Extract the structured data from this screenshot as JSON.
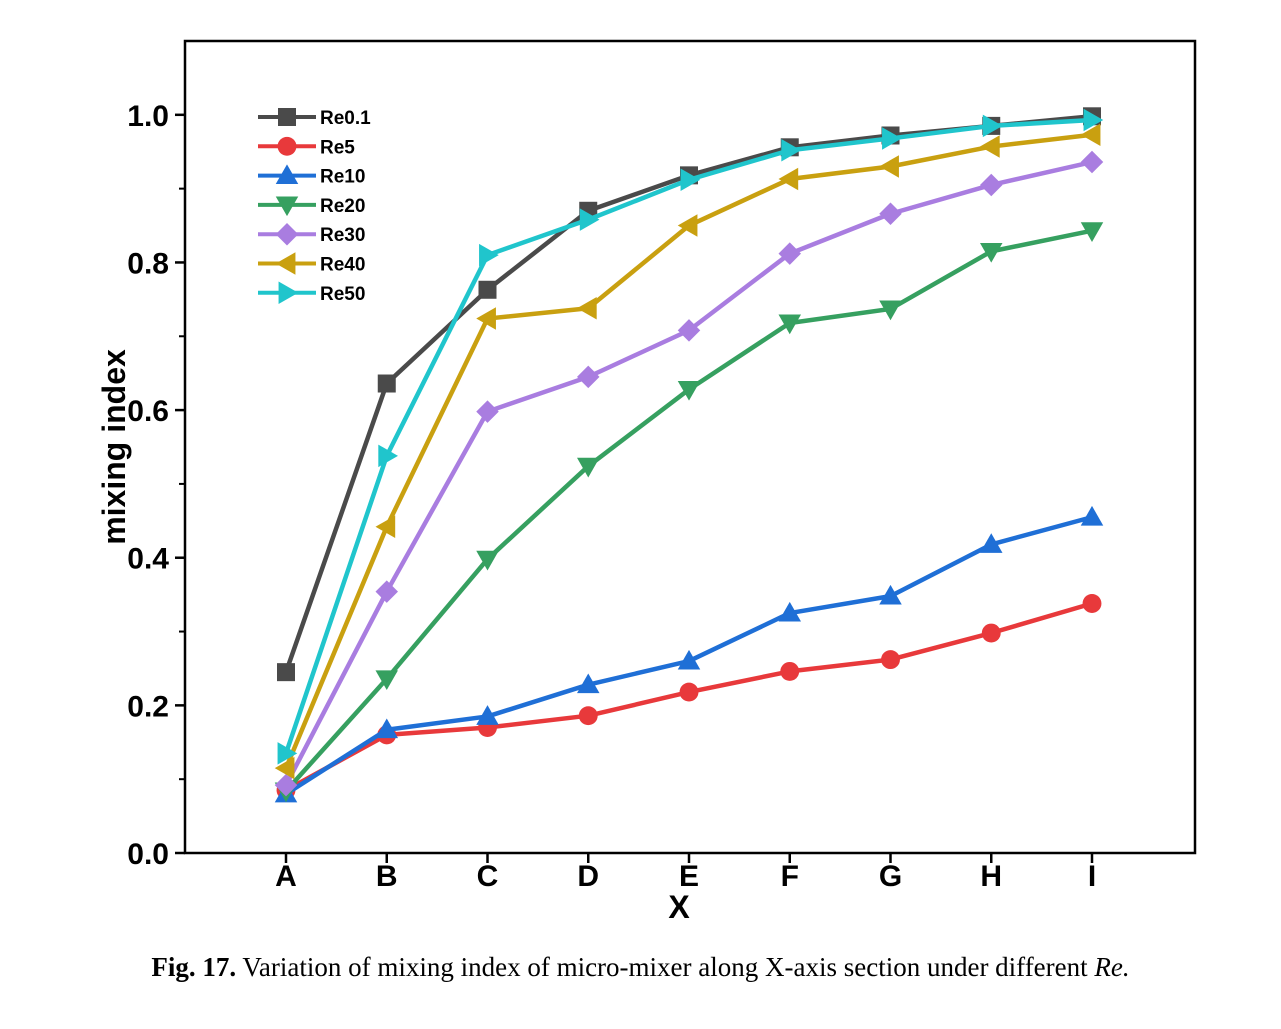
{
  "chart_data": {
    "type": "line",
    "categories": [
      "A",
      "B",
      "C",
      "D",
      "E",
      "F",
      "G",
      "H",
      "I"
    ],
    "xlabel": "X",
    "ylabel": "mixing index",
    "ylim": [
      0.0,
      1.1
    ],
    "yticks": [
      "0.0",
      "0.2",
      "0.4",
      "0.6",
      "0.8",
      "1.0"
    ],
    "grid": false,
    "legend_position": "top-left",
    "series": [
      {
        "name": "Re0.1",
        "color": "#4a4a4a",
        "marker": "square",
        "values": [
          0.245,
          0.636,
          0.763,
          0.87,
          0.918,
          0.956,
          0.972,
          0.985,
          0.998
        ]
      },
      {
        "name": "Re5",
        "color": "#e8393b",
        "marker": "circle",
        "values": [
          0.085,
          0.16,
          0.17,
          0.186,
          0.218,
          0.246,
          0.262,
          0.298,
          0.338
        ]
      },
      {
        "name": "Re10",
        "color": "#1f6fd6",
        "marker": "triangle-up",
        "values": [
          0.08,
          0.167,
          0.185,
          0.228,
          0.26,
          0.325,
          0.348,
          0.418,
          0.455
        ]
      },
      {
        "name": "Re20",
        "color": "#36a060",
        "marker": "triangle-down",
        "values": [
          0.084,
          0.236,
          0.398,
          0.524,
          0.628,
          0.718,
          0.737,
          0.815,
          0.843
        ]
      },
      {
        "name": "Re30",
        "color": "#a97de0",
        "marker": "diamond",
        "values": [
          0.092,
          0.354,
          0.598,
          0.645,
          0.708,
          0.812,
          0.866,
          0.905,
          0.936
        ]
      },
      {
        "name": "Re40",
        "color": "#c9a010",
        "marker": "triangle-left",
        "values": [
          0.115,
          0.442,
          0.724,
          0.738,
          0.85,
          0.913,
          0.93,
          0.957,
          0.973
        ]
      },
      {
        "name": "Re50",
        "color": "#20c5cc",
        "marker": "triangle-right",
        "values": [
          0.135,
          0.538,
          0.81,
          0.858,
          0.912,
          0.952,
          0.968,
          0.985,
          0.993
        ]
      }
    ]
  },
  "caption": {
    "number": "Fig. 17.",
    "text": "Variation of mixing index of micro-mixer along X-axis section under different",
    "italic": "Re."
  }
}
